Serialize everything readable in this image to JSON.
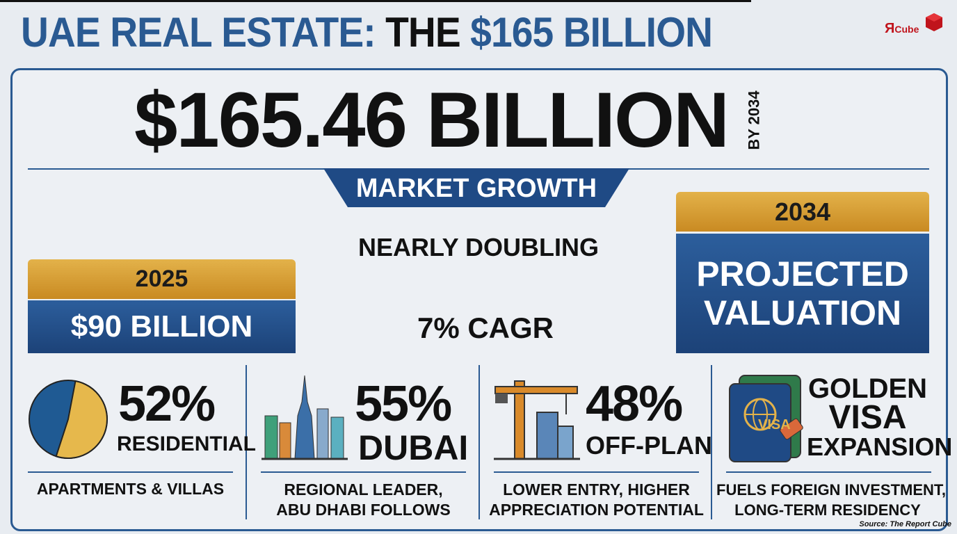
{
  "header": {
    "title_parts": [
      "UAE REAL ESTATE:",
      "THE",
      "$165 BILLION"
    ],
    "logo": {
      "mark": "Я",
      "text": "Cube"
    }
  },
  "headline": {
    "value": "$165.46 BILLION",
    "side_note": "BY 2034"
  },
  "growth": {
    "tab": "MARKET GROWTH",
    "left": {
      "year": "2025",
      "value": "$90 BILLION"
    },
    "middle": [
      "NEARLY DOUBLING",
      "7% CAGR"
    ],
    "right": {
      "year": "2034",
      "lines": [
        "PROJECTED",
        "VALUATION"
      ]
    }
  },
  "stats": [
    {
      "value": 52,
      "value_label": "52%",
      "label": "RESIDENTIAL",
      "caption": [
        "APARTMENTS & VILLAS"
      ]
    },
    {
      "value_label": "55%",
      "label": "DUBAI",
      "caption": [
        "REGIONAL LEADER,",
        "ABU DHABI FOLLOWS"
      ]
    },
    {
      "value_label": "48%",
      "label": "OFF-PLAN",
      "caption": [
        "LOWER ENTRY, HIGHER",
        "APPRECIATION POTENTIAL"
      ]
    },
    {
      "lines": [
        "GOLDEN",
        "VISA",
        "EXPANSION"
      ],
      "icon_text": "VISA",
      "caption": [
        "FUELS FOREIGN INVESTMENT,",
        "LONG-TERM RESIDENCY"
      ]
    }
  ],
  "source": "Source: The Report Cube"
}
